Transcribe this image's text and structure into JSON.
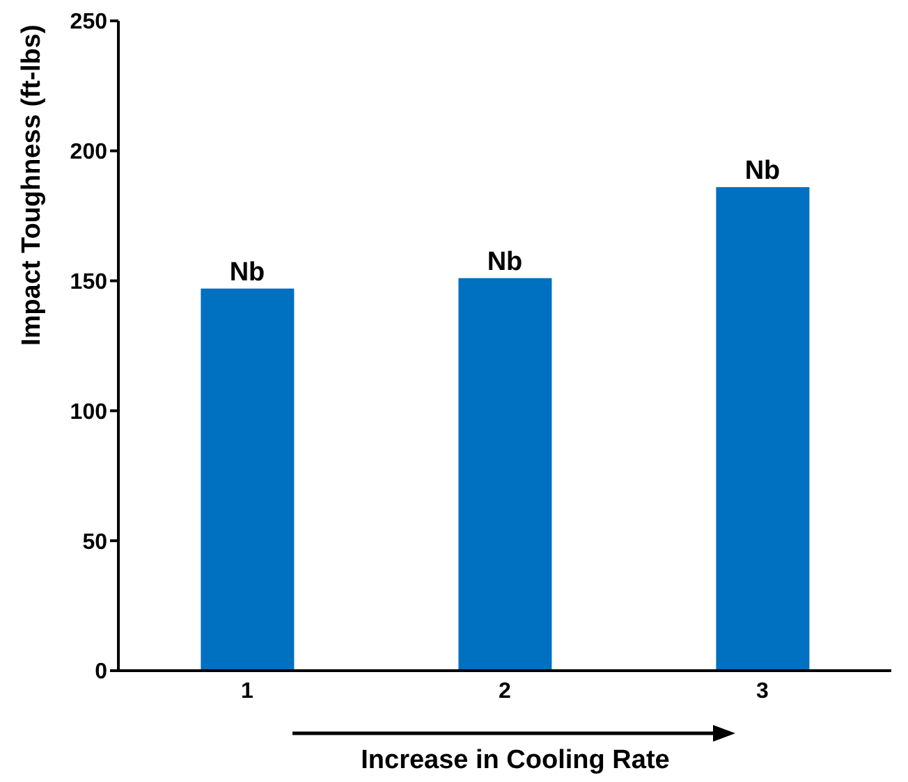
{
  "chart_data": {
    "type": "bar",
    "categories": [
      "1",
      "2",
      "3"
    ],
    "values": [
      147,
      151,
      186
    ],
    "color": "#0070c0",
    "xlabel": "Increase in Cooling Rate",
    "ylabel": "Impact Toughness (ft-lbs)",
    "ylim": [
      0,
      250
    ],
    "yticks": [
      0,
      50,
      100,
      150,
      200,
      250
    ],
    "grid": false,
    "annotations": [
      {
        "text": "Nb",
        "x": "1",
        "y": 147
      },
      {
        "text": "Nb",
        "x": "2",
        "y": 151
      },
      {
        "text": "Nb",
        "x": "3",
        "y": 186
      }
    ]
  }
}
